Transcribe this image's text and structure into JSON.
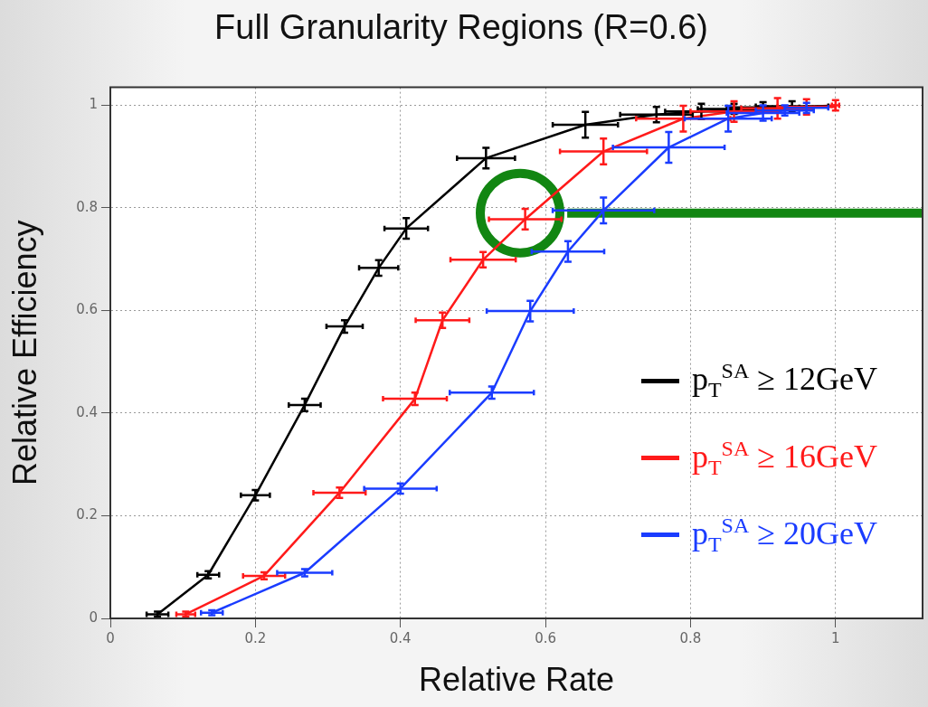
{
  "chart_data": {
    "type": "line",
    "title": "Full Granularity Regions (R=0.6)",
    "xlabel": "Relative Rate",
    "ylabel": "Relative Efficiency",
    "xlim": [
      0,
      1.12
    ],
    "xticks": [
      0,
      0.2,
      0.4,
      0.6,
      0.8,
      1
    ],
    "ylim": [
      0,
      1.035
    ],
    "yticks": [
      0,
      0.2,
      0.4,
      0.6,
      0.8,
      1
    ],
    "grid": true,
    "legend": "bottom right",
    "marker": "none",
    "line_style": "solid",
    "series": [
      {
        "name": "p$_{T}$$^{SA}$ ≥ 12GeV",
        "color": "#000000",
        "x": [
          0.065,
          0.135,
          0.2,
          0.268,
          0.323,
          0.37,
          0.408,
          0.518,
          0.655,
          0.753,
          0.815,
          0.86,
          0.9,
          0.94
        ],
        "values": [
          0.008,
          0.085,
          0.24,
          0.416,
          0.569,
          0.683,
          0.76,
          0.897,
          0.962,
          0.982,
          0.988,
          0.993,
          0.996,
          0.998
        ],
        "xerrors": [
          0.015,
          0.015,
          0.02,
          0.022,
          0.025,
          0.027,
          0.03,
          0.04,
          0.045,
          0.05,
          0.05,
          0.05,
          0.05,
          0.05
        ],
        "errors": [
          0.005,
          0.007,
          0.01,
          0.012,
          0.012,
          0.015,
          0.02,
          0.02,
          0.025,
          0.015,
          0.015,
          0.01,
          0.01,
          0.01
        ]
      },
      {
        "name": "p$_{T}$$^{SA}$ ≥ 16GeV",
        "color": "#ff1a1a",
        "x": [
          0.104,
          0.212,
          0.316,
          0.42,
          0.458,
          0.514,
          0.572,
          0.68,
          0.79,
          0.86,
          0.92,
          0.96,
          1.0
        ],
        "values": [
          0.008,
          0.083,
          0.245,
          0.428,
          0.581,
          0.699,
          0.778,
          0.91,
          0.974,
          0.988,
          0.994,
          0.997,
          1.0
        ],
        "xerrors": [
          0.013,
          0.029,
          0.036,
          0.044,
          0.037,
          0.045,
          0.05,
          0.06,
          0.065,
          0.06,
          0.05,
          0.04,
          0.005
        ],
        "errors": [
          0.005,
          0.007,
          0.01,
          0.012,
          0.015,
          0.015,
          0.02,
          0.025,
          0.025,
          0.02,
          0.02,
          0.015,
          0.01
        ]
      },
      {
        "name": "p$_{T}$$^{SA}$ ≥ 20GeV",
        "color": "#1a3cff",
        "x": [
          0.14,
          0.268,
          0.4,
          0.526,
          0.579,
          0.631,
          0.68,
          0.77,
          0.852,
          0.9,
          0.93,
          0.96
        ],
        "values": [
          0.011,
          0.089,
          0.253,
          0.44,
          0.599,
          0.715,
          0.795,
          0.918,
          0.974,
          0.985,
          0.99,
          0.995
        ],
        "xerrors": [
          0.015,
          0.038,
          0.05,
          0.058,
          0.06,
          0.05,
          0.07,
          0.077,
          0.06,
          0.05,
          0.04,
          0.03
        ],
        "errors": [
          0.005,
          0.007,
          0.01,
          0.012,
          0.02,
          0.02,
          0.025,
          0.03,
          0.025,
          0.015,
          0.01,
          0.01
        ]
      },
      {
        "type": "line",
        "color": "#128612",
        "x": [
          0.63,
          1.12
        ],
        "values": [
          0.79,
          0.79
        ]
      },
      {
        "type": "scatter",
        "marker": "circle",
        "color": "#128612",
        "x": [
          0.565
        ],
        "values": [
          0.79
        ]
      }
    ]
  }
}
